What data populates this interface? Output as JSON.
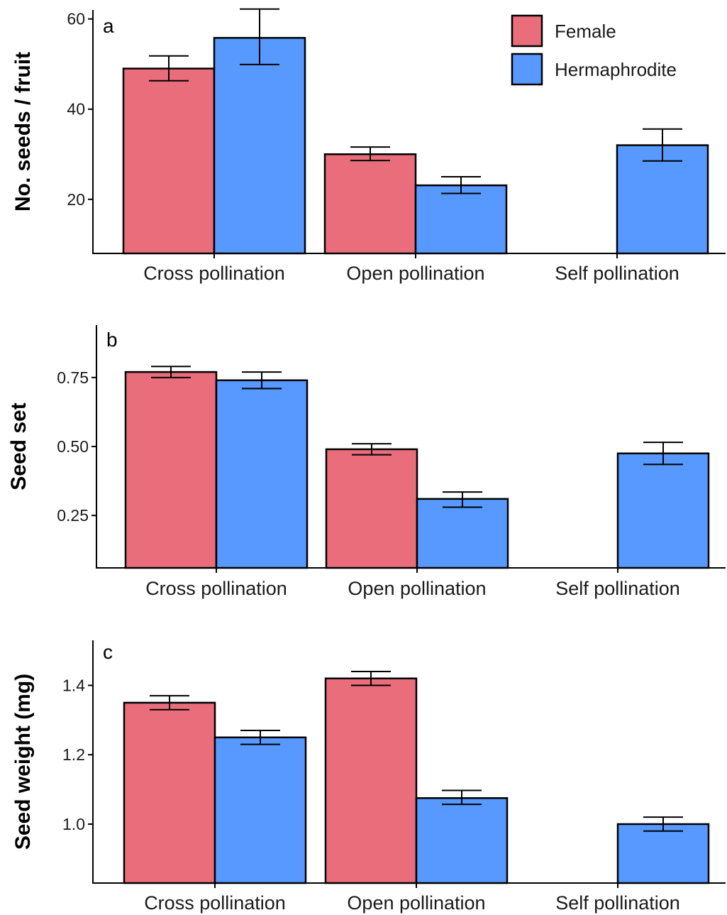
{
  "colors": {
    "Female": "#EA6D7C",
    "Hermaphrodite": "#5799FF"
  },
  "legend": {
    "entries": [
      "Female",
      "Hermaphrodite"
    ],
    "placement": "top-right of panel a"
  },
  "chart_data": [
    {
      "panel": "a",
      "type": "bar",
      "ylabel": "No. seeds / fruit",
      "ylim": [
        8,
        62
      ],
      "yticks": [
        20,
        40,
        60
      ],
      "categories": [
        "Cross pollination",
        "Open pollination",
        "Self pollination"
      ],
      "series": [
        {
          "name": "Female",
          "values": [
            49,
            30,
            null
          ],
          "err": [
            [
              46.3,
              51.8
            ],
            [
              28.6,
              31.6
            ],
            [
              null,
              null
            ]
          ]
        },
        {
          "name": "Hermaphrodite",
          "values": [
            55.8,
            23.1,
            32
          ],
          "err": [
            [
              49.9,
              62.2
            ],
            [
              21.3,
              25
            ],
            [
              28.5,
              35.6
            ]
          ]
        }
      ]
    },
    {
      "panel": "b",
      "type": "bar",
      "ylabel": "Seed set",
      "ylim": [
        0.06,
        0.94
      ],
      "yticks": [
        0.25,
        0.5,
        0.75
      ],
      "ytick_labels": [
        "0.25",
        "0.50",
        "0.75"
      ],
      "categories": [
        "Cross pollination",
        "Open pollination",
        "Self pollination"
      ],
      "series": [
        {
          "name": "Female",
          "values": [
            0.77,
            0.49,
            null
          ],
          "err": [
            [
              0.75,
              0.79
            ],
            [
              0.47,
              0.51
            ],
            [
              null,
              null
            ]
          ]
        },
        {
          "name": "Hermaphrodite",
          "values": [
            0.74,
            0.31,
            0.475
          ],
          "err": [
            [
              0.71,
              0.77
            ],
            [
              0.28,
              0.335
            ],
            [
              0.435,
              0.515
            ]
          ]
        }
      ]
    },
    {
      "panel": "c",
      "type": "bar",
      "ylabel": "Seed weight (mg)",
      "ylim": [
        0.83,
        1.53
      ],
      "yticks": [
        1.0,
        1.2,
        1.4
      ],
      "ytick_labels": [
        "1.0",
        "1.2",
        "1.4"
      ],
      "categories": [
        "Cross pollination",
        "Open pollination",
        "Self pollination"
      ],
      "series": [
        {
          "name": "Female",
          "values": [
            1.35,
            1.42,
            null
          ],
          "err": [
            [
              1.33,
              1.37
            ],
            [
              1.4,
              1.44
            ],
            [
              null,
              null
            ]
          ]
        },
        {
          "name": "Hermaphrodite",
          "values": [
            1.25,
            1.075,
            1.0
          ],
          "err": [
            [
              1.23,
              1.27
            ],
            [
              1.057,
              1.097
            ],
            [
              0.98,
              1.02
            ]
          ]
        }
      ]
    }
  ]
}
